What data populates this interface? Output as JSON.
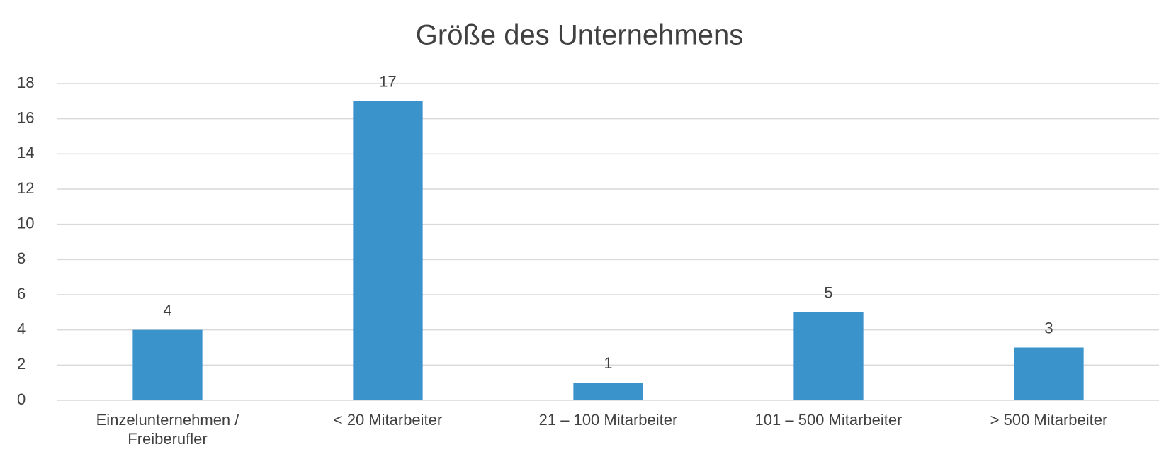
{
  "chart_data": {
    "type": "bar",
    "title": "Größe des Unternehmens",
    "categories": [
      "Einzelunternehmen / Freiberufler",
      "< 20 Mitarbeiter",
      "21 – 100 Mitarbeiter",
      "101 – 500 Mitarbeiter",
      "> 500 Mitarbeiter"
    ],
    "values": [
      4,
      17,
      1,
      5,
      3
    ],
    "color": "#3a94cb",
    "ylim": [
      0,
      18
    ],
    "yticks": [
      0,
      2,
      4,
      6,
      8,
      10,
      12,
      14,
      16,
      18
    ],
    "grid": true
  }
}
